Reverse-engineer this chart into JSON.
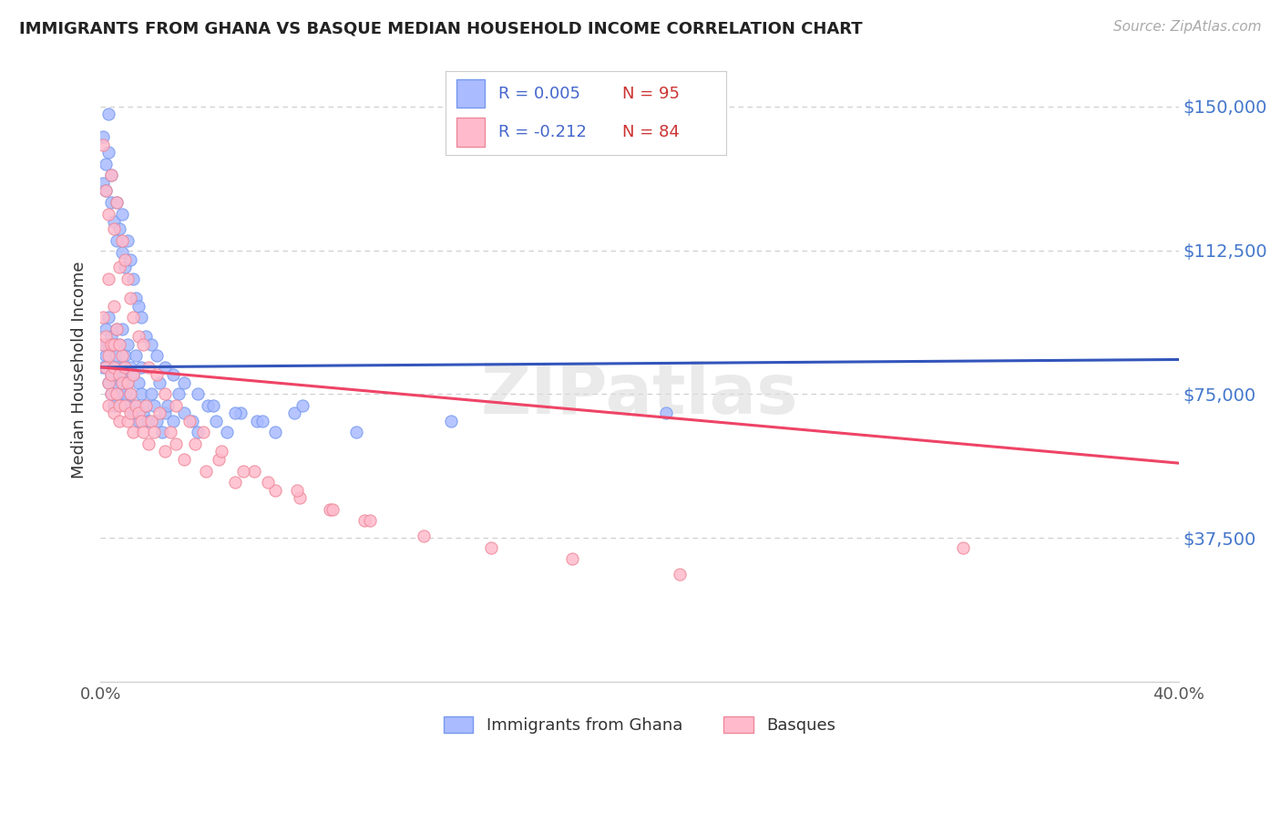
{
  "title": "IMMIGRANTS FROM GHANA VS BASQUE MEDIAN HOUSEHOLD INCOME CORRELATION CHART",
  "source": "Source: ZipAtlas.com",
  "ylabel": "Median Household Income",
  "xlim": [
    0.0,
    0.4
  ],
  "ylim": [
    0,
    162500
  ],
  "yticks": [
    0,
    37500,
    75000,
    112500,
    150000
  ],
  "ytick_labels": [
    "",
    "$37,500",
    "$75,000",
    "$112,500",
    "$150,000"
  ],
  "xticks": [
    0.0,
    0.4
  ],
  "xtick_labels": [
    "0.0%",
    "40.0%"
  ],
  "background_color": "#ffffff",
  "grid_color": "#cccccc",
  "series1_scatter_color": "#aabbff",
  "series1_edge_color": "#7799ee",
  "series2_scatter_color": "#ffbbcc",
  "series2_edge_color": "#ee8899",
  "series1_line_color": "#3355bb",
  "series2_line_color": "#ee4466",
  "watermark": "ZIPatlas",
  "legend_box_color": "#f8f8ff",
  "legend_box_edge": "#cccccc",
  "series1_R": 0.005,
  "series1_N": 95,
  "series2_R": -0.212,
  "series2_N": 84,
  "series1_x": [
    0.001,
    0.001,
    0.002,
    0.002,
    0.003,
    0.003,
    0.003,
    0.004,
    0.004,
    0.004,
    0.005,
    0.005,
    0.005,
    0.006,
    0.006,
    0.006,
    0.007,
    0.007,
    0.007,
    0.008,
    0.008,
    0.008,
    0.009,
    0.009,
    0.009,
    0.01,
    0.01,
    0.01,
    0.011,
    0.011,
    0.012,
    0.012,
    0.013,
    0.013,
    0.014,
    0.014,
    0.015,
    0.015,
    0.016,
    0.017,
    0.018,
    0.019,
    0.02,
    0.021,
    0.022,
    0.023,
    0.024,
    0.025,
    0.027,
    0.029,
    0.031,
    0.034,
    0.036,
    0.04,
    0.043,
    0.047,
    0.052,
    0.058,
    0.065,
    0.072,
    0.001,
    0.001,
    0.002,
    0.002,
    0.003,
    0.003,
    0.004,
    0.004,
    0.005,
    0.006,
    0.006,
    0.007,
    0.008,
    0.008,
    0.009,
    0.01,
    0.011,
    0.012,
    0.013,
    0.014,
    0.015,
    0.017,
    0.019,
    0.021,
    0.024,
    0.027,
    0.031,
    0.036,
    0.042,
    0.05,
    0.06,
    0.075,
    0.095,
    0.13,
    0.21
  ],
  "series1_y": [
    88000,
    82000,
    85000,
    92000,
    78000,
    95000,
    88000,
    80000,
    90000,
    75000,
    82000,
    88000,
    72000,
    85000,
    78000,
    92000,
    80000,
    75000,
    88000,
    82000,
    78000,
    92000,
    75000,
    85000,
    80000,
    78000,
    88000,
    72000,
    82000,
    75000,
    80000,
    70000,
    85000,
    72000,
    78000,
    68000,
    75000,
    82000,
    70000,
    72000,
    68000,
    75000,
    72000,
    68000,
    78000,
    65000,
    70000,
    72000,
    68000,
    75000,
    70000,
    68000,
    65000,
    72000,
    68000,
    65000,
    70000,
    68000,
    65000,
    70000,
    130000,
    142000,
    135000,
    128000,
    148000,
    138000,
    125000,
    132000,
    120000,
    125000,
    115000,
    118000,
    112000,
    122000,
    108000,
    115000,
    110000,
    105000,
    100000,
    98000,
    95000,
    90000,
    88000,
    85000,
    82000,
    80000,
    78000,
    75000,
    72000,
    70000,
    68000,
    72000,
    65000,
    68000,
    70000
  ],
  "series2_x": [
    0.001,
    0.001,
    0.002,
    0.002,
    0.003,
    0.003,
    0.003,
    0.004,
    0.004,
    0.004,
    0.005,
    0.005,
    0.005,
    0.006,
    0.006,
    0.007,
    0.007,
    0.007,
    0.008,
    0.008,
    0.009,
    0.009,
    0.01,
    0.01,
    0.011,
    0.011,
    0.012,
    0.012,
    0.013,
    0.014,
    0.015,
    0.016,
    0.017,
    0.018,
    0.019,
    0.02,
    0.022,
    0.024,
    0.026,
    0.028,
    0.031,
    0.035,
    0.039,
    0.044,
    0.05,
    0.057,
    0.065,
    0.074,
    0.085,
    0.098,
    0.001,
    0.002,
    0.003,
    0.004,
    0.005,
    0.006,
    0.007,
    0.008,
    0.009,
    0.01,
    0.011,
    0.012,
    0.014,
    0.016,
    0.018,
    0.021,
    0.024,
    0.028,
    0.033,
    0.038,
    0.045,
    0.053,
    0.062,
    0.073,
    0.086,
    0.1,
    0.12,
    0.145,
    0.175,
    0.215,
    0.003,
    0.005,
    0.007,
    0.32
  ],
  "series2_y": [
    88000,
    95000,
    82000,
    90000,
    78000,
    85000,
    72000,
    88000,
    75000,
    80000,
    82000,
    70000,
    88000,
    75000,
    92000,
    72000,
    80000,
    68000,
    85000,
    78000,
    72000,
    82000,
    68000,
    78000,
    75000,
    70000,
    80000,
    65000,
    72000,
    70000,
    68000,
    65000,
    72000,
    62000,
    68000,
    65000,
    70000,
    60000,
    65000,
    62000,
    58000,
    62000,
    55000,
    58000,
    52000,
    55000,
    50000,
    48000,
    45000,
    42000,
    140000,
    128000,
    122000,
    132000,
    118000,
    125000,
    108000,
    115000,
    110000,
    105000,
    100000,
    95000,
    90000,
    88000,
    82000,
    80000,
    75000,
    72000,
    68000,
    65000,
    60000,
    55000,
    52000,
    50000,
    45000,
    42000,
    38000,
    35000,
    32000,
    28000,
    105000,
    98000,
    88000,
    35000
  ]
}
